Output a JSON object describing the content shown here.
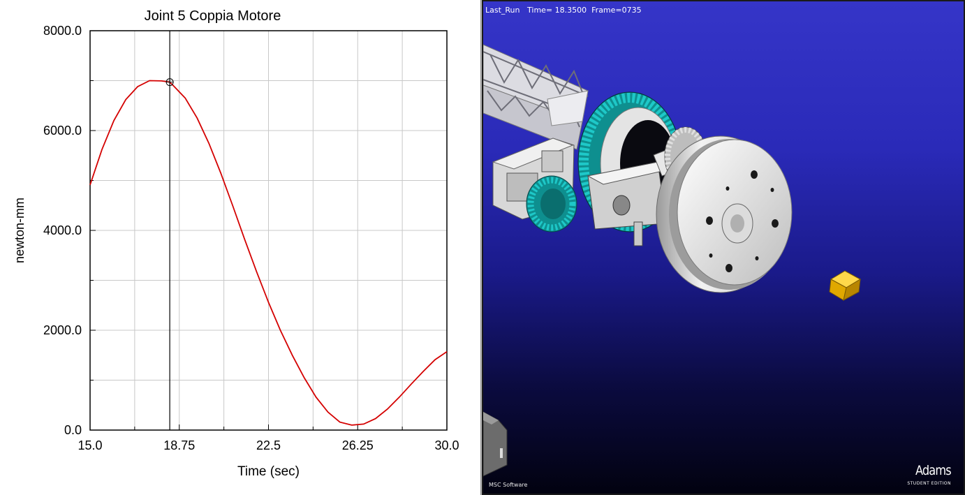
{
  "plot": {
    "chart_data": {
      "type": "line",
      "title": "Joint 5 Coppia Motore",
      "xlabel": "Time (sec)",
      "ylabel": "newton-mm",
      "xlim": [
        15.0,
        30.0
      ],
      "ylim": [
        0.0,
        8000.0
      ],
      "x_ticks": [
        "15.0",
        "18.75",
        "22.5",
        "26.25",
        "30.0"
      ],
      "y_ticks": [
        "0.0",
        "2000.0",
        "4000.0",
        "6000.0",
        "8000.0"
      ],
      "grid": true,
      "series": [
        {
          "color": "#d40000",
          "x": [
            15.0,
            15.5,
            16.0,
            16.5,
            17.0,
            17.5,
            18.0,
            18.35,
            18.5,
            19.0,
            19.5,
            20.0,
            20.5,
            21.0,
            21.5,
            22.0,
            22.5,
            23.0,
            23.5,
            24.0,
            24.5,
            25.0,
            25.5,
            26.0,
            26.5,
            27.0,
            27.5,
            28.0,
            28.5,
            29.0,
            29.5,
            30.0
          ],
          "y": [
            4910,
            5620,
            6200,
            6620,
            6880,
            7000,
            6995,
            6970,
            6900,
            6650,
            6250,
            5740,
            5140,
            4490,
            3820,
            3170,
            2560,
            2000,
            1500,
            1050,
            660,
            360,
            160,
            100,
            120,
            230,
            420,
            660,
            920,
            1170,
            1410,
            1570
          ]
        }
      ],
      "cursor": {
        "x": 18.35,
        "y": 6970
      }
    }
  },
  "view": {
    "status": {
      "run_name": "Last_Run",
      "time_label": "Time= 18.3500",
      "frame_label": "Frame=0735"
    },
    "brand": {
      "product": "Adams",
      "edition": "STUDENT EDITION",
      "vendor": "MSC Software"
    },
    "colors": {
      "gear": "#1ec8c8",
      "gear_dark": "#0e8f8f",
      "wheel": "#e6e6e6",
      "wheel_shade": "#a8a8a8",
      "cube": "#f0b800",
      "truss": "#e8e8ec"
    }
  }
}
